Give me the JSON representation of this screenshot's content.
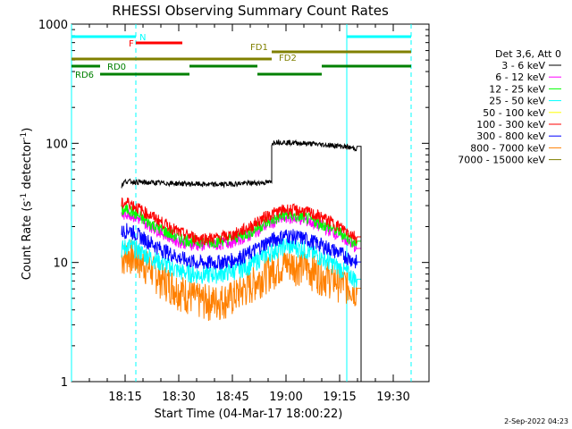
{
  "chart_data": {
    "type": "line",
    "title": "RHESSI Observing Summary Count Rates",
    "xlabel": "Start Time (04-Mar-17 18:00:22)",
    "ylabel_main": "Count Rate (s",
    "ylabel_sup1": "-1",
    "ylabel_mid": " detector",
    "ylabel_sup2": "-1",
    "ylabel_end": ")",
    "yscale": "log",
    "ylim": [
      1,
      1000
    ],
    "xlim_min": [
      0,
      100
    ],
    "y_ticks": [
      {
        "value": 1,
        "label": "1"
      },
      {
        "value": 10,
        "label": "10"
      },
      {
        "value": 100,
        "label": "100"
      },
      {
        "value": 1000,
        "label": "1000"
      }
    ],
    "x_ticks": [
      {
        "min": 15,
        "label": "18:15"
      },
      {
        "min": 30,
        "label": "18:30"
      },
      {
        "min": 45,
        "label": "18:45"
      },
      {
        "min": 60,
        "label": "19:00"
      },
      {
        "min": 75,
        "label": "19:15"
      },
      {
        "min": 90,
        "label": "19:30"
      }
    ],
    "footer_date": "2-Sep-2022 04:23",
    "legend_header": "Det 3,6, Att 0",
    "series": [
      {
        "name": "3 - 6 keV",
        "color": "#000000",
        "segments": [
          {
            "x": [
              14,
              15,
              20,
              30,
              40,
              55,
              56
            ],
            "y": [
              44,
              48,
              47,
              46,
              45,
              47,
              47
            ]
          },
          {
            "x": [
              56,
              57,
              65,
              75,
              80
            ],
            "y": [
              100,
              103,
              100,
              95,
              90
            ]
          }
        ],
        "drop_at": 81
      },
      {
        "name": "6 - 12 keV",
        "color": "#ff00ff",
        "segments": [
          {
            "x": [
              14,
              16,
              20,
              25,
              30,
              35,
              40,
              45,
              50,
              55,
              60,
              65,
              70,
              75,
              80
            ],
            "y": [
              25,
              26,
              22,
              18,
              15,
              14,
              14,
              15,
              17,
              21,
              24,
              23,
              20,
              17,
              13
            ]
          }
        ],
        "drop_at": 81
      },
      {
        "name": "12 - 25 keV",
        "color": "#00ff00",
        "segments": [
          {
            "x": [
              14,
              16,
              20,
              25,
              30,
              35,
              40,
              45,
              50,
              55,
              60,
              65,
              70,
              75,
              80
            ],
            "y": [
              27,
              28,
              23,
              19,
              16,
              15,
              15,
              16,
              18,
              22,
              25,
              24,
              21,
              18,
              14
            ]
          }
        ],
        "drop_at": 81
      },
      {
        "name": "25 - 50 keV",
        "color": "#00ffff",
        "segments": [
          {
            "x": [
              14,
              16,
              20,
              25,
              30,
              35,
              40,
              45,
              50,
              55,
              60,
              65,
              70,
              75,
              80
            ],
            "y": [
              13,
              14,
              12,
              10,
              8.5,
              8,
              8,
              8.5,
              9.5,
              12,
              14,
              13,
              11,
              9,
              7
            ]
          }
        ],
        "drop_at": 81
      },
      {
        "name": "50 - 100 keV",
        "color": "#ffff00",
        "segments": []
      },
      {
        "name": "100 - 300 keV",
        "color": "#ff0000",
        "segments": [
          {
            "x": [
              14,
              16,
              20,
              25,
              30,
              35,
              40,
              45,
              50,
              55,
              60,
              65,
              70,
              75,
              80
            ],
            "y": [
              31,
              32,
              27,
              22,
              18,
              16,
              16,
              17,
              20,
              25,
              28,
              27,
              24,
              20,
              16
            ]
          }
        ],
        "drop_at": 81
      },
      {
        "name": "300 - 800 keV",
        "color": "#0000ff",
        "segments": [
          {
            "x": [
              14,
              16,
              20,
              25,
              30,
              35,
              40,
              45,
              50,
              55,
              60,
              65,
              70,
              75,
              80
            ],
            "y": [
              18,
              19,
              16,
              13,
              11,
              10,
              10,
              10.5,
              12,
              15,
              17,
              16,
              14,
              12,
              10
            ]
          }
        ],
        "drop_at": 81
      },
      {
        "name": "800 - 7000 keV",
        "color": "#ff8000",
        "segments": [
          {
            "x": [
              14,
              16,
              20,
              25,
              30,
              35,
              40,
              45,
              50,
              55,
              60,
              65,
              70,
              75,
              80
            ],
            "y": [
              11,
              12,
              10,
              7.5,
              6,
              5,
              4.8,
              5.2,
              6.5,
              8.5,
              10,
              9.5,
              8,
              7,
              6
            ]
          }
        ],
        "drop_at": 81
      },
      {
        "name": "7000 - 15000 keV",
        "color": "#808000",
        "segments": []
      }
    ],
    "status_bars": [
      {
        "label": "N",
        "color": "#00ffff",
        "y_row": 0,
        "ranges": [
          [
            0,
            18
          ],
          [
            77,
            95
          ]
        ],
        "label_min": 19
      },
      {
        "label": "F",
        "color": "#ff0000",
        "y_row": 1,
        "ranges": [
          [
            18,
            31
          ]
        ],
        "label_min": 16
      },
      {
        "label": "FD1",
        "color": "#808000",
        "y_row": 2,
        "ranges": [
          [
            56,
            95
          ]
        ],
        "label_min": 50
      },
      {
        "label": "FD2",
        "color": "#808000",
        "y_row": 3,
        "ranges": [
          [
            0,
            56
          ]
        ],
        "label_min": 58
      },
      {
        "label": "RD0",
        "color": "#008000",
        "y_row": 4,
        "ranges": [
          [
            0,
            8
          ],
          [
            33,
            52
          ],
          [
            70,
            95
          ]
        ],
        "label_min": 10
      },
      {
        "label": "RD6",
        "color": "#008000",
        "y_row": 5,
        "ranges": [
          [
            8,
            33
          ],
          [
            52,
            70
          ]
        ],
        "label_min": 1
      }
    ],
    "vlines_solid_cyan": [
      0,
      77
    ],
    "vlines_dashed_cyan": [
      18,
      95
    ]
  }
}
